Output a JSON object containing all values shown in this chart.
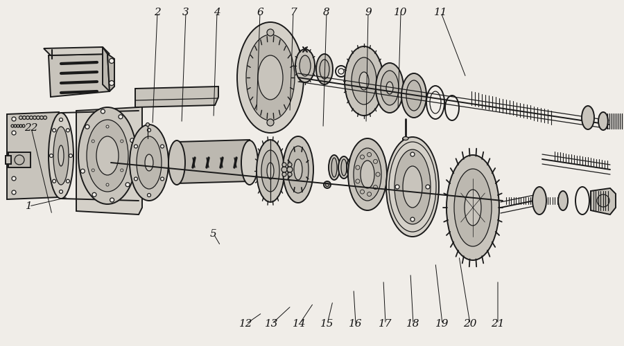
{
  "bg_color": "#f0ede8",
  "line_color": "#1a1a1a",
  "label_color": "#111111",
  "label_fontsize": 11,
  "fig_width": 9.0,
  "fig_height": 5.0,
  "dpi": 100,
  "labels": [
    [
      "2",
      227,
      18
    ],
    [
      "3",
      268,
      18
    ],
    [
      "4",
      313,
      18
    ],
    [
      "6",
      375,
      18
    ],
    [
      "7",
      423,
      18
    ],
    [
      "8",
      471,
      18
    ],
    [
      "9",
      531,
      18
    ],
    [
      "10",
      578,
      18
    ],
    [
      "11",
      636,
      18
    ],
    [
      "1",
      42,
      298
    ],
    [
      "5",
      308,
      338
    ],
    [
      "12",
      355,
      468
    ],
    [
      "13",
      392,
      468
    ],
    [
      "14",
      432,
      468
    ],
    [
      "15",
      472,
      468
    ],
    [
      "16",
      513,
      468
    ],
    [
      "17",
      556,
      468
    ],
    [
      "18",
      596,
      468
    ],
    [
      "19",
      638,
      468
    ],
    [
      "20",
      678,
      468
    ],
    [
      "21",
      718,
      468
    ],
    [
      "22",
      45,
      185
    ]
  ],
  "leader_lines": [
    [
      "2",
      227,
      18,
      220,
      180
    ],
    [
      "3",
      268,
      18,
      262,
      178
    ],
    [
      "4",
      313,
      18,
      308,
      170
    ],
    [
      "6",
      375,
      18,
      370,
      162
    ],
    [
      "7",
      423,
      18,
      418,
      162
    ],
    [
      "8",
      471,
      18,
      466,
      185
    ],
    [
      "9",
      531,
      18,
      528,
      178
    ],
    [
      "10",
      578,
      18,
      574,
      158
    ],
    [
      "11",
      636,
      18,
      672,
      112
    ],
    [
      "1",
      42,
      298,
      98,
      285
    ],
    [
      "5",
      308,
      338,
      318,
      355
    ],
    [
      "12",
      355,
      468,
      378,
      452
    ],
    [
      "13",
      392,
      468,
      420,
      442
    ],
    [
      "14",
      432,
      468,
      452,
      438
    ],
    [
      "15",
      472,
      468,
      480,
      435
    ],
    [
      "16",
      513,
      468,
      510,
      418
    ],
    [
      "17",
      556,
      468,
      553,
      405
    ],
    [
      "18",
      596,
      468,
      592,
      395
    ],
    [
      "19",
      638,
      468,
      628,
      380
    ],
    [
      "20",
      678,
      468,
      662,
      370
    ],
    [
      "21",
      718,
      468,
      718,
      405
    ],
    [
      "22",
      45,
      185,
      75,
      310
    ]
  ]
}
